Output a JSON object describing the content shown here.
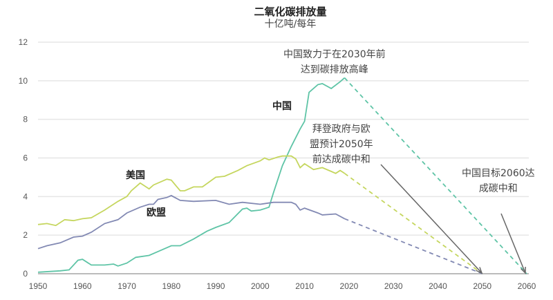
{
  "chart_data": {
    "type": "line",
    "title": "二氧化碳排放量",
    "subtitle": "十亿吨/每年",
    "xlim": [
      1950,
      2060
    ],
    "ylim": [
      0,
      12
    ],
    "xticks": [
      "1950",
      "1960",
      "1970",
      "1980",
      "1990",
      "2000",
      "2010",
      "2020",
      "2030",
      "2040",
      "2050",
      "2060"
    ],
    "yticks": [
      "0",
      "2",
      "4",
      "6",
      "8",
      "10",
      "12"
    ],
    "grid": true,
    "colors": {
      "china": "#5ec4a6",
      "us": "#c5d65e",
      "eu": "#8289b3",
      "arrow": "#666666"
    },
    "series": [
      {
        "name": "中国",
        "key": "china",
        "x": [
          1950,
          1955,
          1957,
          1959,
          1960,
          1962,
          1965,
          1967,
          1968,
          1970,
          1972,
          1975,
          1977,
          1980,
          1982,
          1985,
          1988,
          1990,
          1993,
          1996,
          1997,
          1998,
          2000,
          2002,
          2003,
          2005,
          2007,
          2009,
          2010,
          2011,
          2013,
          2014,
          2016,
          2018,
          2019
        ],
        "y": [
          0.08,
          0.15,
          0.2,
          0.7,
          0.75,
          0.45,
          0.45,
          0.5,
          0.4,
          0.55,
          0.85,
          0.95,
          1.15,
          1.45,
          1.45,
          1.8,
          2.2,
          2.4,
          2.65,
          3.35,
          3.4,
          3.25,
          3.3,
          3.45,
          4.2,
          5.6,
          6.6,
          7.5,
          7.9,
          9.4,
          9.8,
          9.85,
          9.6,
          9.95,
          10.15
        ],
        "projection": {
          "x": [
            2019,
            2060
          ],
          "y": [
            10.15,
            0
          ]
        }
      },
      {
        "name": "美国",
        "key": "us",
        "x": [
          1950,
          1952,
          1954,
          1956,
          1958,
          1960,
          1962,
          1965,
          1968,
          1970,
          1971,
          1973,
          1975,
          1976,
          1979,
          1980,
          1982,
          1983,
          1985,
          1987,
          1990,
          1992,
          1995,
          1997,
          2000,
          2001,
          2002,
          2004,
          2005,
          2007,
          2008,
          2009,
          2010,
          2012,
          2014,
          2016,
          2017,
          2018,
          2019
        ],
        "y": [
          2.55,
          2.6,
          2.5,
          2.8,
          2.75,
          2.85,
          2.9,
          3.3,
          3.75,
          4.0,
          4.3,
          4.7,
          4.4,
          4.6,
          4.9,
          4.85,
          4.3,
          4.3,
          4.5,
          4.5,
          5.0,
          5.05,
          5.35,
          5.6,
          5.85,
          6.0,
          5.9,
          6.05,
          6.1,
          6.1,
          5.95,
          5.5,
          5.7,
          5.4,
          5.5,
          5.3,
          5.2,
          5.35,
          5.2
        ],
        "projection": {
          "x": [
            2019,
            2050
          ],
          "y": [
            5.2,
            0
          ]
        }
      },
      {
        "name": "欧盟",
        "key": "eu",
        "x": [
          1950,
          1952,
          1955,
          1958,
          1960,
          1962,
          1965,
          1968,
          1970,
          1973,
          1975,
          1976,
          1977,
          1979,
          1980,
          1982,
          1985,
          1990,
          1993,
          1996,
          2000,
          2003,
          2007,
          2008,
          2009,
          2010,
          2013,
          2014,
          2017,
          2019
        ],
        "y": [
          1.3,
          1.45,
          1.6,
          1.9,
          1.95,
          2.15,
          2.6,
          2.8,
          3.15,
          3.45,
          3.6,
          3.6,
          3.85,
          3.95,
          4.05,
          3.8,
          3.75,
          3.8,
          3.6,
          3.7,
          3.6,
          3.7,
          3.7,
          3.6,
          3.3,
          3.4,
          3.15,
          3.05,
          3.1,
          2.85
        ],
        "projection": {
          "x": [
            2019,
            2050
          ],
          "y": [
            2.85,
            0
          ]
        }
      }
    ],
    "annotations": {
      "china_peak": [
        "中国致力于在2030年前",
        "达到碳排放高峰"
      ],
      "us_eu_neutral": [
        "拜登政府与欧",
        "盟预计2050年",
        "前达成碳中和"
      ],
      "china_neutral": [
        "中国目标2060达",
        "成碳中和"
      ]
    }
  }
}
